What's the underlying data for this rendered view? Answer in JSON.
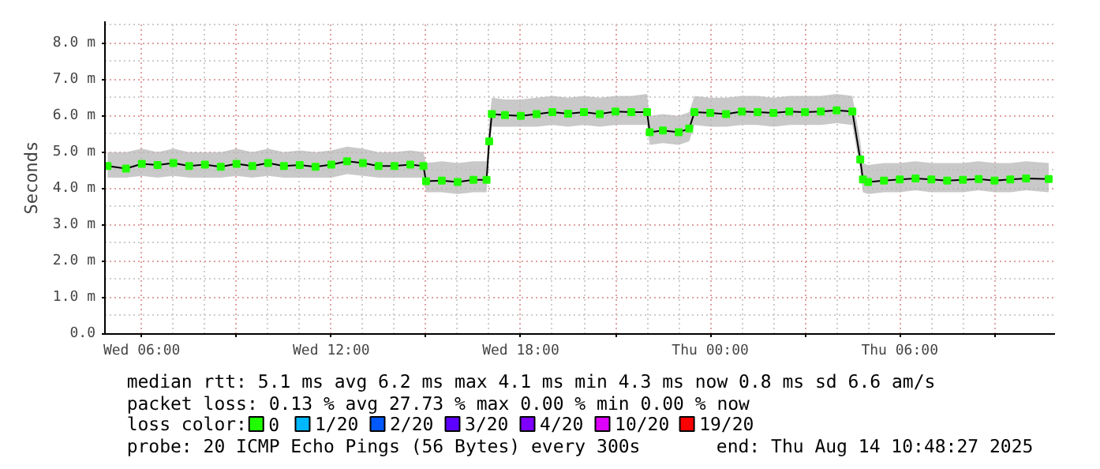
{
  "chart_data": {
    "type": "line",
    "ylabel": "Seconds",
    "legend_title": "loss color:",
    "legend": "bottom",
    "marker": "square",
    "grid": true,
    "annotations": [
      "median rtt:  5.1 ms avg  6.2 ms max  4.1 ms min  4.3 ms now  0.8 ms sd  6.6   am/s",
      "packet loss: 0.13 % avg  27.73 % max  0.00 % min  0.00 % now",
      "probe:       20 ICMP Echo Pings (56 Bytes) every 300s",
      "end: Thu Aug 14 10:48:27 2025"
    ],
    "xlim": [
      "2025-08-13T04:50",
      "2025-08-14T10:55"
    ],
    "xticks": [
      {
        "value": "2025-08-13T06:00",
        "label": "Wed 06:00"
      },
      {
        "value": "2025-08-13T09:00",
        "label": null
      },
      {
        "value": "2025-08-13T12:00",
        "label": "Wed 12:00"
      },
      {
        "value": "2025-08-13T15:00",
        "label": null
      },
      {
        "value": "2025-08-13T18:00",
        "label": "Wed 18:00"
      },
      {
        "value": "2025-08-13T21:00",
        "label": null
      },
      {
        "value": "2025-08-14T00:00",
        "label": "Thu 00:00"
      },
      {
        "value": "2025-08-14T03:00",
        "label": null
      },
      {
        "value": "2025-08-14T06:00",
        "label": "Thu 06:00"
      },
      {
        "value": "2025-08-14T09:00",
        "label": null
      }
    ],
    "ylim": [
      0,
      8.6
    ],
    "yticks": [
      {
        "value": 0,
        "label": "0.0"
      },
      {
        "value": 1,
        "label": "1.0 m"
      },
      {
        "value": 2,
        "label": "2.0 m"
      },
      {
        "value": 3,
        "label": "3.0 m"
      },
      {
        "value": 4,
        "label": "4.0 m"
      },
      {
        "value": 5,
        "label": "5.0 m"
      },
      {
        "value": 6,
        "label": "6.0 m"
      },
      {
        "value": 7,
        "label": "7.0 m"
      },
      {
        "value": 8,
        "label": "8.0 m"
      }
    ],
    "x": [
      "2025-08-13T04:55",
      "2025-08-13T05:30",
      "2025-08-13T06:00",
      "2025-08-13T06:30",
      "2025-08-13T07:00",
      "2025-08-13T07:30",
      "2025-08-13T08:00",
      "2025-08-13T08:30",
      "2025-08-13T09:00",
      "2025-08-13T09:30",
      "2025-08-13T10:00",
      "2025-08-13T10:30",
      "2025-08-13T11:00",
      "2025-08-13T11:30",
      "2025-08-13T12:00",
      "2025-08-13T12:30",
      "2025-08-13T13:00",
      "2025-08-13T13:30",
      "2025-08-13T14:00",
      "2025-08-13T14:30",
      "2025-08-13T14:55",
      "2025-08-13T15:00",
      "2025-08-13T15:30",
      "2025-08-13T16:00",
      "2025-08-13T16:30",
      "2025-08-13T16:55",
      "2025-08-13T17:00",
      "2025-08-13T17:05",
      "2025-08-13T17:30",
      "2025-08-13T18:00",
      "2025-08-13T18:30",
      "2025-08-13T19:00",
      "2025-08-13T19:30",
      "2025-08-13T20:00",
      "2025-08-13T20:30",
      "2025-08-13T21:00",
      "2025-08-13T21:30",
      "2025-08-13T22:00",
      "2025-08-13T22:05",
      "2025-08-13T22:30",
      "2025-08-13T23:00",
      "2025-08-13T23:20",
      "2025-08-13T23:30",
      "2025-08-14T00:00",
      "2025-08-14T00:30",
      "2025-08-14T01:00",
      "2025-08-14T01:30",
      "2025-08-14T02:00",
      "2025-08-14T02:30",
      "2025-08-14T03:00",
      "2025-08-14T03:30",
      "2025-08-14T04:00",
      "2025-08-14T04:30",
      "2025-08-14T04:45",
      "2025-08-14T04:50",
      "2025-08-14T05:00",
      "2025-08-14T05:30",
      "2025-08-14T06:00",
      "2025-08-14T06:30",
      "2025-08-14T07:00",
      "2025-08-14T07:30",
      "2025-08-14T08:00",
      "2025-08-14T08:30",
      "2025-08-14T09:00",
      "2025-08-14T09:30",
      "2025-08-14T10:00",
      "2025-08-14T10:43"
    ],
    "series": [
      {
        "name": "0",
        "color": "#20ff00",
        "values": [
          4.62,
          4.55,
          4.68,
          4.65,
          4.7,
          4.62,
          4.66,
          4.6,
          4.68,
          4.62,
          4.7,
          4.62,
          4.65,
          4.6,
          4.66,
          4.75,
          4.7,
          4.62,
          4.62,
          4.66,
          4.62,
          4.2,
          4.22,
          4.18,
          4.24,
          4.24,
          5.3,
          6.05,
          6.02,
          6.0,
          6.05,
          6.1,
          6.06,
          6.1,
          6.05,
          6.12,
          6.1,
          6.1,
          5.55,
          5.6,
          5.55,
          5.65,
          6.1,
          6.08,
          6.05,
          6.12,
          6.1,
          6.08,
          6.12,
          6.1,
          6.12,
          6.15,
          6.12,
          4.8,
          4.25,
          4.18,
          4.22,
          4.25,
          4.28,
          4.25,
          4.22,
          4.24,
          4.26,
          4.22,
          4.25,
          4.28,
          4.26
        ],
        "lower": [
          4.3,
          4.3,
          4.35,
          4.3,
          4.35,
          4.3,
          4.3,
          4.3,
          4.35,
          4.3,
          4.35,
          4.3,
          4.3,
          4.3,
          4.3,
          4.4,
          4.35,
          4.3,
          4.3,
          4.3,
          4.3,
          3.9,
          3.9,
          3.85,
          3.9,
          3.9,
          5.0,
          5.7,
          5.7,
          5.7,
          5.7,
          5.75,
          5.7,
          5.75,
          5.7,
          5.75,
          5.75,
          5.75,
          5.2,
          5.25,
          5.2,
          5.3,
          5.75,
          5.7,
          5.7,
          5.75,
          5.75,
          5.7,
          5.75,
          5.75,
          5.75,
          5.8,
          5.75,
          4.5,
          3.9,
          3.85,
          3.9,
          3.9,
          3.95,
          3.9,
          3.9,
          3.9,
          3.95,
          3.9,
          3.9,
          3.95,
          3.9
        ],
        "upper": [
          5.0,
          5.0,
          5.1,
          5.0,
          5.1,
          5.0,
          5.0,
          5.0,
          5.1,
          5.0,
          5.1,
          5.0,
          5.05,
          5.0,
          5.05,
          5.15,
          5.1,
          5.0,
          5.0,
          5.05,
          5.0,
          4.7,
          4.75,
          4.7,
          4.75,
          4.75,
          5.8,
          6.5,
          6.45,
          6.45,
          6.5,
          6.55,
          6.5,
          6.55,
          6.5,
          6.55,
          6.55,
          6.6,
          6.0,
          6.05,
          6.0,
          6.1,
          6.55,
          6.5,
          6.5,
          6.55,
          6.55,
          6.5,
          6.55,
          6.55,
          6.55,
          6.6,
          6.55,
          5.3,
          4.7,
          4.65,
          4.7,
          4.7,
          4.75,
          4.7,
          4.7,
          4.7,
          4.75,
          4.7,
          4.7,
          4.75,
          4.7
        ]
      },
      {
        "name": "1/20",
        "color": "#00b8ff",
        "values": [
          null,
          null,
          null,
          null,
          null,
          null,
          null,
          null,
          null,
          null,
          null,
          null,
          null,
          null,
          null,
          null,
          null,
          null,
          null,
          null,
          null,
          null,
          null,
          null,
          null,
          null,
          null,
          null,
          null,
          null,
          null,
          null,
          null,
          null,
          null,
          null,
          null,
          null,
          null,
          null,
          null,
          null,
          null,
          null,
          null,
          null,
          null,
          null,
          null,
          null,
          null,
          null,
          null,
          null,
          null,
          null,
          null,
          null,
          null,
          null,
          null,
          null,
          null,
          null,
          null,
          null,
          null
        ]
      },
      {
        "name": "2/20",
        "color": "#0059ff",
        "values": [
          null,
          null,
          null,
          null,
          null,
          null,
          null,
          null,
          null,
          null,
          null,
          null,
          null,
          null,
          null,
          null,
          null,
          null,
          null,
          null,
          null,
          null,
          null,
          null,
          null,
          null,
          null,
          null,
          null,
          null,
          null,
          null,
          null,
          null,
          null,
          null,
          null,
          null,
          null,
          null,
          null,
          null,
          null,
          null,
          null,
          null,
          null,
          null,
          null,
          null,
          null,
          null,
          null,
          null,
          null,
          null,
          null,
          null,
          null,
          null,
          null,
          null,
          null,
          null,
          null,
          null,
          null
        ]
      },
      {
        "name": "3/20",
        "color": "#5e00ff",
        "values": [
          null,
          null,
          null,
          null,
          null,
          null,
          null,
          null,
          null,
          null,
          null,
          null,
          null,
          null,
          null,
          null,
          null,
          null,
          null,
          null,
          null,
          null,
          null,
          null,
          null,
          null,
          null,
          null,
          null,
          null,
          null,
          null,
          null,
          null,
          null,
          null,
          null,
          null,
          null,
          null,
          null,
          null,
          null,
          null,
          null,
          null,
          null,
          null,
          null,
          null,
          null,
          null,
          null,
          null,
          null,
          null,
          null,
          null,
          null,
          null,
          null,
          null,
          null,
          null,
          null,
          null,
          null
        ]
      },
      {
        "name": "4/20",
        "color": "#7e00ff",
        "values": [
          null,
          null,
          null,
          null,
          null,
          null,
          null,
          null,
          null,
          null,
          null,
          null,
          null,
          null,
          null,
          null,
          null,
          null,
          null,
          null,
          null,
          null,
          null,
          null,
          null,
          null,
          null,
          null,
          null,
          null,
          null,
          null,
          null,
          null,
          null,
          null,
          null,
          null,
          null,
          null,
          null,
          null,
          null,
          null,
          null,
          null,
          null,
          null,
          null,
          null,
          null,
          null,
          null,
          null,
          null,
          null,
          null,
          null,
          null,
          null,
          null,
          null,
          null,
          null,
          null,
          null,
          null
        ]
      },
      {
        "name": "10/20",
        "color": "#dd00ff",
        "values": [
          null,
          null,
          null,
          null,
          null,
          null,
          null,
          null,
          null,
          null,
          null,
          null,
          null,
          null,
          null,
          null,
          null,
          null,
          null,
          null,
          null,
          null,
          null,
          null,
          null,
          null,
          null,
          null,
          null,
          null,
          null,
          null,
          null,
          null,
          null,
          null,
          null,
          null,
          null,
          null,
          null,
          null,
          null,
          null,
          null,
          null,
          null,
          null,
          null,
          null,
          null,
          null,
          null,
          null,
          null,
          null,
          null,
          null,
          null,
          null,
          null,
          null,
          null,
          null,
          null,
          null,
          null
        ]
      },
      {
        "name": "19/20",
        "color": "#ff0000",
        "values": [
          null,
          null,
          null,
          null,
          null,
          null,
          null,
          null,
          null,
          null,
          null,
          null,
          null,
          null,
          null,
          null,
          null,
          null,
          null,
          null,
          null,
          null,
          null,
          null,
          null,
          null,
          null,
          null,
          null,
          null,
          null,
          null,
          null,
          null,
          null,
          null,
          null,
          null,
          null,
          null,
          null,
          null,
          null,
          null,
          null,
          null,
          null,
          null,
          null,
          null,
          null,
          null,
          null,
          null,
          null,
          null,
          null,
          null,
          null,
          null,
          null,
          null,
          null,
          null,
          null,
          null,
          null
        ]
      }
    ]
  }
}
